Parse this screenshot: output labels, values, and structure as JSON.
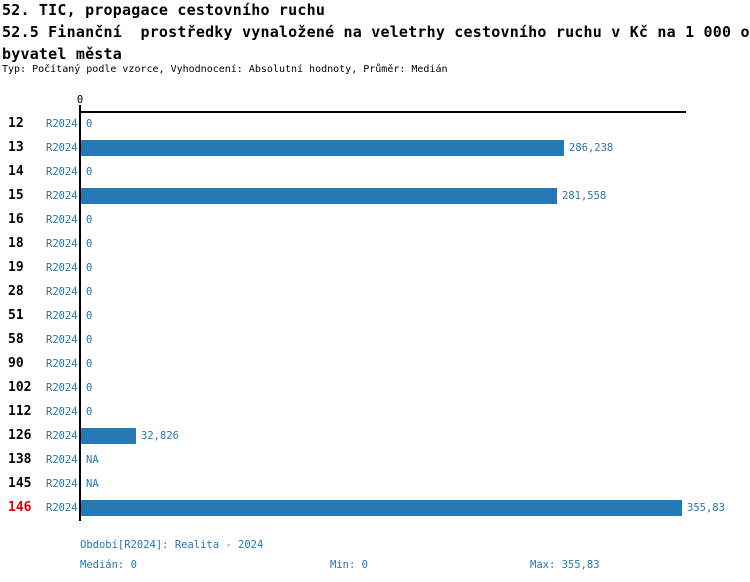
{
  "header": {
    "title_line1": "52. TIC, propagace cestovního ruchu",
    "title_line2": "52.5 Finanční  prostředky vynaložené na veletrhy cestovního ruchu v Kč na 1 000 o",
    "title_line3": "byvatel města",
    "subtitle": "Typ: Počítaný podle vzorce, Vyhodnocení: Absolutní hodnoty, Průměr: Medián"
  },
  "chart_data": {
    "type": "bar",
    "orientation": "horizontal",
    "axis_tick_label": "0",
    "period_label": "R2024",
    "categories": [
      "12",
      "13",
      "14",
      "15",
      "16",
      "18",
      "19",
      "28",
      "51",
      "58",
      "90",
      "102",
      "112",
      "126",
      "138",
      "145",
      "146"
    ],
    "values": [
      0,
      286.238,
      0,
      281.558,
      0,
      0,
      0,
      0,
      0,
      0,
      0,
      0,
      0,
      32.826,
      null,
      null,
      355.83
    ],
    "value_labels": [
      "0",
      "286,238",
      "0",
      "281,558",
      "0",
      "0",
      "0",
      "0",
      "0",
      "0",
      "0",
      "0",
      "0",
      "32,826",
      "NA",
      "NA",
      "355,83"
    ],
    "highlighted_category": "146",
    "xlim": [
      0,
      355.83
    ],
    "grid": false,
    "legend": "none",
    "bar_color": "#2478b4",
    "highlight_color": "#dd0000"
  },
  "footer": {
    "period_line": "Období[R2024]: Realita - 2024",
    "median": "Medián: 0",
    "min": "Min: 0",
    "max": "Max: 355,83"
  }
}
